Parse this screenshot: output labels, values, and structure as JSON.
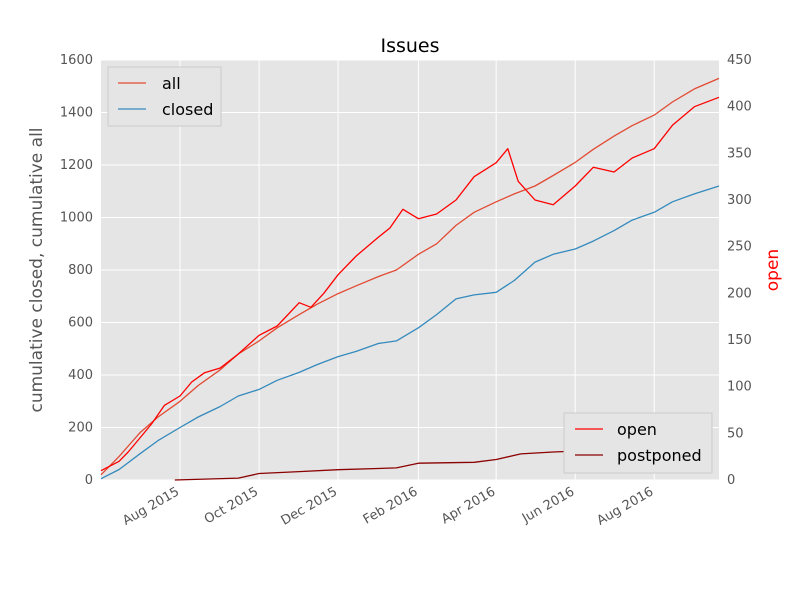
{
  "chart_data": {
    "type": "line",
    "title": "Issues",
    "ylabel_left": "cumulative closed, cumulative all",
    "ylabel_right": "open",
    "ylim_left": [
      0,
      1600
    ],
    "ylim_right": [
      0,
      450
    ],
    "yticks_left": [
      "0",
      "200",
      "400",
      "600",
      "800",
      "1000",
      "1200",
      "1400",
      "1600"
    ],
    "yticks_right": [
      "0",
      "50",
      "100",
      "150",
      "200",
      "250",
      "300",
      "350",
      "400",
      "450"
    ],
    "xlim": [
      "2015-06-01",
      "2016-09-20"
    ],
    "xticks": [
      {
        "date": "2015-08-01",
        "label": "Aug 2015"
      },
      {
        "date": "2015-10-01",
        "label": "Oct 2015"
      },
      {
        "date": "2015-12-01",
        "label": "Dec 2015"
      },
      {
        "date": "2016-02-01",
        "label": "Feb 2016"
      },
      {
        "date": "2016-04-01",
        "label": "Apr 2016"
      },
      {
        "date": "2016-06-01",
        "label": "Jun 2016"
      },
      {
        "date": "2016-08-01",
        "label": "Aug 2016"
      }
    ],
    "grid": true,
    "legend_left": {
      "placement": "upper-left",
      "entries": [
        "all",
        "closed"
      ]
    },
    "legend_right": {
      "placement": "lower-right",
      "entries": [
        "open",
        "postponed"
      ]
    },
    "series": [
      {
        "name": "all",
        "axis": "left",
        "color": "#e24a33",
        "points": [
          [
            "2015-06-01",
            20
          ],
          [
            "2015-06-15",
            90
          ],
          [
            "2015-07-01",
            180
          ],
          [
            "2015-07-15",
            240
          ],
          [
            "2015-08-01",
            300
          ],
          [
            "2015-08-15",
            360
          ],
          [
            "2015-09-01",
            420
          ],
          [
            "2015-09-15",
            480
          ],
          [
            "2015-10-01",
            530
          ],
          [
            "2015-10-15",
            580
          ],
          [
            "2015-11-01",
            630
          ],
          [
            "2015-11-15",
            670
          ],
          [
            "2015-12-01",
            710
          ],
          [
            "2015-12-15",
            740
          ],
          [
            "2016-01-01",
            775
          ],
          [
            "2016-01-15",
            800
          ],
          [
            "2016-02-01",
            860
          ],
          [
            "2016-02-15",
            900
          ],
          [
            "2016-03-01",
            970
          ],
          [
            "2016-03-15",
            1020
          ],
          [
            "2016-04-01",
            1060
          ],
          [
            "2016-04-15",
            1090
          ],
          [
            "2016-05-01",
            1120
          ],
          [
            "2016-05-15",
            1160
          ],
          [
            "2016-06-01",
            1210
          ],
          [
            "2016-06-15",
            1260
          ],
          [
            "2016-07-01",
            1310
          ],
          [
            "2016-07-15",
            1350
          ],
          [
            "2016-08-01",
            1390
          ],
          [
            "2016-08-15",
            1440
          ],
          [
            "2016-09-01",
            1490
          ],
          [
            "2016-09-20",
            1530
          ]
        ]
      },
      {
        "name": "closed",
        "axis": "left",
        "color": "#348abd",
        "points": [
          [
            "2015-06-01",
            5
          ],
          [
            "2015-06-15",
            40
          ],
          [
            "2015-07-01",
            100
          ],
          [
            "2015-07-15",
            150
          ],
          [
            "2015-08-01",
            200
          ],
          [
            "2015-08-15",
            240
          ],
          [
            "2015-09-01",
            280
          ],
          [
            "2015-09-15",
            320
          ],
          [
            "2015-10-01",
            345
          ],
          [
            "2015-10-15",
            380
          ],
          [
            "2015-11-01",
            410
          ],
          [
            "2015-11-15",
            440
          ],
          [
            "2015-12-01",
            470
          ],
          [
            "2015-12-15",
            490
          ],
          [
            "2016-01-01",
            520
          ],
          [
            "2016-01-15",
            530
          ],
          [
            "2016-02-01",
            580
          ],
          [
            "2016-02-15",
            630
          ],
          [
            "2016-03-01",
            690
          ],
          [
            "2016-03-15",
            705
          ],
          [
            "2016-04-01",
            715
          ],
          [
            "2016-04-15",
            760
          ],
          [
            "2016-05-01",
            830
          ],
          [
            "2016-05-15",
            860
          ],
          [
            "2016-06-01",
            880
          ],
          [
            "2016-06-15",
            910
          ],
          [
            "2016-07-01",
            950
          ],
          [
            "2016-07-15",
            990
          ],
          [
            "2016-08-01",
            1020
          ],
          [
            "2016-08-15",
            1060
          ],
          [
            "2016-09-01",
            1090
          ],
          [
            "2016-09-20",
            1120
          ]
        ]
      },
      {
        "name": "open",
        "axis": "right",
        "color": "#ff0000",
        "points": [
          [
            "2015-06-01",
            10
          ],
          [
            "2015-06-15",
            20
          ],
          [
            "2015-06-22",
            30
          ],
          [
            "2015-07-01",
            45
          ],
          [
            "2015-07-10",
            60
          ],
          [
            "2015-07-20",
            80
          ],
          [
            "2015-08-01",
            90
          ],
          [
            "2015-08-10",
            105
          ],
          [
            "2015-08-20",
            115
          ],
          [
            "2015-09-01",
            120
          ],
          [
            "2015-09-15",
            135
          ],
          [
            "2015-10-01",
            155
          ],
          [
            "2015-10-15",
            165
          ],
          [
            "2015-11-01",
            190
          ],
          [
            "2015-11-10",
            185
          ],
          [
            "2015-11-20",
            200
          ],
          [
            "2015-12-01",
            220
          ],
          [
            "2015-12-15",
            240
          ],
          [
            "2016-01-01",
            260
          ],
          [
            "2016-01-10",
            270
          ],
          [
            "2016-01-20",
            290
          ],
          [
            "2016-02-01",
            280
          ],
          [
            "2016-02-15",
            285
          ],
          [
            "2016-03-01",
            300
          ],
          [
            "2016-03-15",
            325
          ],
          [
            "2016-04-01",
            340
          ],
          [
            "2016-04-10",
            355
          ],
          [
            "2016-04-18",
            320
          ],
          [
            "2016-05-01",
            300
          ],
          [
            "2016-05-15",
            295
          ],
          [
            "2016-06-01",
            315
          ],
          [
            "2016-06-15",
            335
          ],
          [
            "2016-07-01",
            330
          ],
          [
            "2016-07-15",
            345
          ],
          [
            "2016-08-01",
            355
          ],
          [
            "2016-08-15",
            380
          ],
          [
            "2016-09-01",
            400
          ],
          [
            "2016-09-20",
            410
          ]
        ]
      },
      {
        "name": "postponed",
        "axis": "right",
        "color": "#8b0000",
        "points": [
          [
            "2015-07-28",
            0
          ],
          [
            "2015-09-15",
            2
          ],
          [
            "2015-10-01",
            7
          ],
          [
            "2015-11-01",
            9
          ],
          [
            "2015-12-01",
            11
          ],
          [
            "2016-01-15",
            13
          ],
          [
            "2016-02-01",
            18
          ],
          [
            "2016-03-15",
            19
          ],
          [
            "2016-04-01",
            22
          ],
          [
            "2016-04-20",
            28
          ],
          [
            "2016-05-15",
            30
          ],
          [
            "2016-06-01",
            31
          ],
          [
            "2016-06-20",
            32
          ]
        ]
      }
    ]
  }
}
